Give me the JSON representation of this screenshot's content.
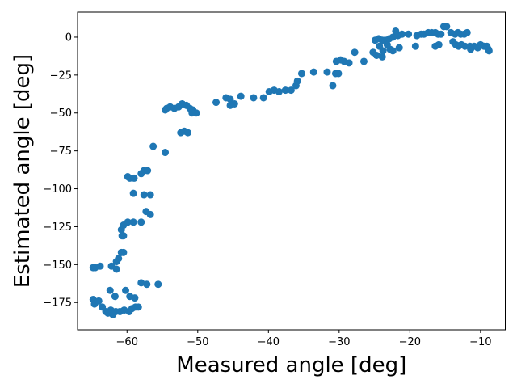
{
  "chart_data": {
    "type": "scatter",
    "title": "",
    "xlabel": "Measured angle [deg]",
    "ylabel": "Estimated angle [deg]",
    "xlim": [
      -67.0,
      -6.5
    ],
    "ylim": [
      -193.0,
      16.5
    ],
    "xticks": [
      -60,
      -50,
      -40,
      -30,
      -20,
      -10
    ],
    "yticks": [
      0,
      -25,
      -50,
      -75,
      -100,
      -125,
      -150,
      -175
    ],
    "xtick_labels": [
      "−60",
      "−50",
      "−40",
      "−30",
      "−20",
      "−10"
    ],
    "ytick_labels": [
      "0",
      "−25",
      "−50",
      "−75",
      "−100",
      "−125",
      "−150",
      "−175"
    ],
    "grid": false,
    "marker_color": "#1f77b4",
    "series": [
      {
        "name": "",
        "points": [
          [
            -64.8,
            -152
          ],
          [
            -64.5,
            -152
          ],
          [
            -63.8,
            -151
          ],
          [
            -62.2,
            -151
          ],
          [
            -61.5,
            -148
          ],
          [
            -61.5,
            -153
          ],
          [
            -61.2,
            -146
          ],
          [
            -60.8,
            -142
          ],
          [
            -60.5,
            -142
          ],
          [
            -60.7,
            -131
          ],
          [
            -60.5,
            -131
          ],
          [
            -60.8,
            -127
          ],
          [
            -60.5,
            -124
          ],
          [
            -59.9,
            -122
          ],
          [
            -59.1,
            -122
          ],
          [
            -58.0,
            -122
          ],
          [
            -57.3,
            -115
          ],
          [
            -56.7,
            -117
          ],
          [
            -57.6,
            -104
          ],
          [
            -56.7,
            -104
          ],
          [
            -59.1,
            -103
          ],
          [
            -59.9,
            -92
          ],
          [
            -59.6,
            -93
          ],
          [
            -59.0,
            -93
          ],
          [
            -58.0,
            -90
          ],
          [
            -57.6,
            -88
          ],
          [
            -57.1,
            -88
          ],
          [
            -56.3,
            -72
          ],
          [
            -54.6,
            -76
          ],
          [
            -64.8,
            -173
          ],
          [
            -64.6,
            -176
          ],
          [
            -64.0,
            -174
          ],
          [
            -63.5,
            -178
          ],
          [
            -63.0,
            -181
          ],
          [
            -62.7,
            -182
          ],
          [
            -62.3,
            -180
          ],
          [
            -62.0,
            -183
          ],
          [
            -61.6,
            -181
          ],
          [
            -61.0,
            -181
          ],
          [
            -60.4,
            -180
          ],
          [
            -59.7,
            -181
          ],
          [
            -59.3,
            -179
          ],
          [
            -58.8,
            -178
          ],
          [
            -58.4,
            -178
          ],
          [
            -61.7,
            -171
          ],
          [
            -60.2,
            -167
          ],
          [
            -59.6,
            -171
          ],
          [
            -58.9,
            -172
          ],
          [
            -62.4,
            -167
          ],
          [
            -58.0,
            -162
          ],
          [
            -57.2,
            -163
          ],
          [
            -55.6,
            -163
          ],
          [
            -54.6,
            -48
          ],
          [
            -54.4,
            -47
          ],
          [
            -53.9,
            -46
          ],
          [
            -53.3,
            -47
          ],
          [
            -52.7,
            -46
          ],
          [
            -52.2,
            -44
          ],
          [
            -51.6,
            -45
          ],
          [
            -51.1,
            -47
          ],
          [
            -50.7,
            -48
          ],
          [
            -50.2,
            -50
          ],
          [
            -50.8,
            -50
          ],
          [
            -52.4,
            -63
          ],
          [
            -51.9,
            -62
          ],
          [
            -51.4,
            -63
          ],
          [
            -47.4,
            -43
          ],
          [
            -46.0,
            -40
          ],
          [
            -45.4,
            -41
          ],
          [
            -45.2,
            -44
          ],
          [
            -44.8,
            -44
          ],
          [
            -45.4,
            -45
          ],
          [
            -43.9,
            -39
          ],
          [
            -42.1,
            -40
          ],
          [
            -40.7,
            -40
          ],
          [
            -39.9,
            -36
          ],
          [
            -39.2,
            -35
          ],
          [
            -38.5,
            -36
          ],
          [
            -37.6,
            -35
          ],
          [
            -36.8,
            -35
          ],
          [
            -36.1,
            -32
          ],
          [
            -35.9,
            -29
          ],
          [
            -35.3,
            -24
          ],
          [
            -33.6,
            -23
          ],
          [
            -31.7,
            -23
          ],
          [
            -30.9,
            -32
          ],
          [
            -30.5,
            -24
          ],
          [
            -30.1,
            -24
          ],
          [
            -30.4,
            -16
          ],
          [
            -29.8,
            -15
          ],
          [
            -29.3,
            -16
          ],
          [
            -28.6,
            -17
          ],
          [
            -27.8,
            -10
          ],
          [
            -26.5,
            -16
          ],
          [
            -25.2,
            -10
          ],
          [
            -24.7,
            -12
          ],
          [
            -23.8,
            -9
          ],
          [
            -24.9,
            -2
          ],
          [
            -24.4,
            -1
          ],
          [
            -23.9,
            -2
          ],
          [
            -23.5,
            -2
          ],
          [
            -22.9,
            -1
          ],
          [
            -22.4,
            0
          ],
          [
            -22.0,
            4
          ],
          [
            -21.7,
            1
          ],
          [
            -21.1,
            2
          ],
          [
            -20.2,
            2
          ],
          [
            -22.8,
            -8
          ],
          [
            -22.4,
            -9
          ],
          [
            -21.5,
            -7
          ],
          [
            -23.9,
            -13
          ],
          [
            -24.3,
            -6
          ],
          [
            -23.2,
            -5
          ],
          [
            -19.2,
            -6
          ],
          [
            -19.0,
            1
          ],
          [
            -18.4,
            2
          ],
          [
            -18.0,
            2
          ],
          [
            -17.4,
            3
          ],
          [
            -16.9,
            3
          ],
          [
            -16.4,
            3
          ],
          [
            -16.0,
            2
          ],
          [
            -15.6,
            2
          ],
          [
            -15.2,
            7
          ],
          [
            -14.8,
            7
          ],
          [
            -14.2,
            3
          ],
          [
            -13.6,
            2
          ],
          [
            -13.2,
            3
          ],
          [
            -12.8,
            2
          ],
          [
            -12.3,
            2
          ],
          [
            -11.9,
            3
          ],
          [
            -13.9,
            -3
          ],
          [
            -13.5,
            -5
          ],
          [
            -13.1,
            -6
          ],
          [
            -12.7,
            -5
          ],
          [
            -12.2,
            -6
          ],
          [
            -11.5,
            -6
          ],
          [
            -11.4,
            -8
          ],
          [
            -10.9,
            -6
          ],
          [
            -10.4,
            -7
          ],
          [
            -10.0,
            -5
          ],
          [
            -9.5,
            -6
          ],
          [
            -9.1,
            -6
          ],
          [
            -8.9,
            -8
          ],
          [
            -8.8,
            -9
          ],
          [
            -16.4,
            -6
          ],
          [
            -15.9,
            -5
          ]
        ]
      }
    ]
  }
}
